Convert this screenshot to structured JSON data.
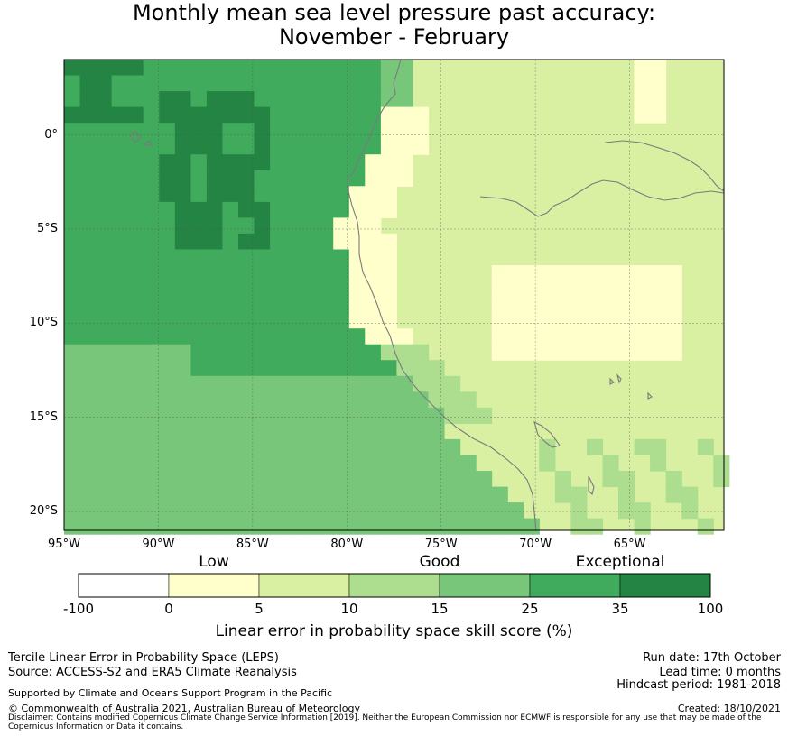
{
  "title": {
    "line1": "Monthly mean sea level pressure past accuracy:",
    "line2": "November - February"
  },
  "map": {
    "lon_range": [
      -95,
      -60
    ],
    "lat_range": [
      -21,
      4
    ],
    "lat_ticks": [
      {
        "value": 0,
        "label": "0°"
      },
      {
        "value": -5,
        "label": "5°S"
      },
      {
        "value": -10,
        "label": "10°S"
      },
      {
        "value": -15,
        "label": "15°S"
      },
      {
        "value": -20,
        "label": "20°S"
      }
    ],
    "lon_ticks": [
      {
        "value": -95,
        "label": "95°W"
      },
      {
        "value": -90,
        "label": "90°W"
      },
      {
        "value": -85,
        "label": "85°W"
      },
      {
        "value": -80,
        "label": "80°W"
      },
      {
        "value": -75,
        "label": "75°W"
      },
      {
        "value": -70,
        "label": "70°W"
      },
      {
        "value": -65,
        "label": "65°W"
      }
    ],
    "gridlines": true
  },
  "legend": {
    "categories": [
      {
        "label": "Low",
        "at": 2.5
      },
      {
        "label": "Good",
        "at": 15
      },
      {
        "label": "Exceptional",
        "at": 35
      }
    ],
    "bins": [
      {
        "from": -100,
        "to": 0,
        "color": "#ffffff"
      },
      {
        "from": 0,
        "to": 5,
        "color": "#ffffcc"
      },
      {
        "from": 5,
        "to": 10,
        "color": "#d9f0a3"
      },
      {
        "from": 10,
        "to": 15,
        "color": "#addd8e"
      },
      {
        "from": 15,
        "to": 25,
        "color": "#78c679"
      },
      {
        "from": 25,
        "to": 35,
        "color": "#41ab5d"
      },
      {
        "from": 35,
        "to": 100,
        "color": "#238443"
      }
    ],
    "tick_labels": [
      "-100",
      "0",
      "5",
      "10",
      "15",
      "25",
      "35",
      "100"
    ],
    "label": "Linear error in probability space skill score (%)"
  },
  "footer": {
    "left1": "Tercile Linear Error in Probability Space (LEPS)",
    "left2": "Source: ACCESS-S2 and ERA5 Climate Reanalysis",
    "support": "Supported by Climate and Oceans Support Program in the Pacific",
    "copyright": "© Commonwealth of Australia 2021, Australian Bureau of Meteorology",
    "disclaimer1": "Disclaimer: Contains modified Copernicus Climate Change Service Information [2019]. Neither the European Commission nor ECMWF is responsible for any use that may be made of the",
    "disclaimer2": "Copernicus Information or Data it contains.",
    "run_date": "Run date: 17th October",
    "lead_time": "Lead time: 0 months",
    "hindcast": "Hindcast period: 1981-2018",
    "created": "Created: 18/10/2021"
  }
}
